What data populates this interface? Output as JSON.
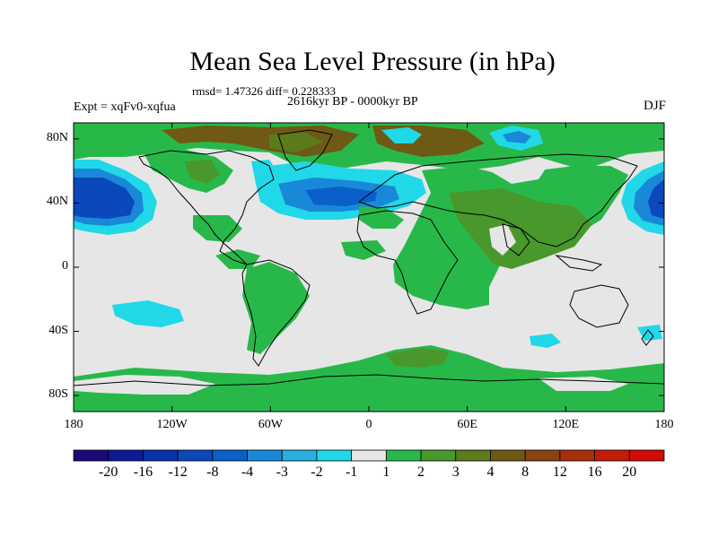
{
  "title": "Mean Sea Level Pressure (in hPa)",
  "stats": "rmsd= 1.47326 diff= 0.228333",
  "period": "2616kyr BP - 0000kyr BP",
  "experiment": "Expt = xqFv0-xqfua",
  "season": "DJF",
  "lat_ticks": [
    {
      "label": "80N",
      "value": 80
    },
    {
      "label": "40N",
      "value": 40
    },
    {
      "label": "0",
      "value": 0
    },
    {
      "label": "40S",
      "value": -40
    },
    {
      "label": "80S",
      "value": -80
    }
  ],
  "lon_ticks": [
    {
      "label": "180",
      "value": -180
    },
    {
      "label": "120W",
      "value": -120
    },
    {
      "label": "60W",
      "value": -60
    },
    {
      "label": "0",
      "value": 0
    },
    {
      "label": "60E",
      "value": 60
    },
    {
      "label": "120E",
      "value": 120
    },
    {
      "label": "180",
      "value": 180
    }
  ],
  "colorbar": {
    "colors": [
      "#1a0a78",
      "#0d1a96",
      "#0a30aa",
      "#0a48bc",
      "#0a60c8",
      "#1a88d8",
      "#28b0e0",
      "#20d8e8",
      "#e6e6e6",
      "#28b84a",
      "#48982c",
      "#5c7c1c",
      "#6e5a14",
      "#8a4210",
      "#a8300a",
      "#c21c06",
      "#d40a04"
    ],
    "labels": [
      "-20",
      "-16",
      "-12",
      "-8",
      "-4",
      "-3",
      "-2",
      "-1",
      "1",
      "2",
      "3",
      "4",
      "8",
      "12",
      "16",
      "20"
    ]
  },
  "chart_data": {
    "type": "heatmap",
    "title": "Mean Sea Level Pressure (in hPa)",
    "variable": "Mean sea level pressure difference",
    "units": "hPa",
    "experiment": "Expt = xqFv0-xqfua",
    "period": "2616kyr BP - 0000kyr BP",
    "season": "DJF",
    "rmsd": 1.47326,
    "diff": 0.228333,
    "xlim": [
      -180,
      180
    ],
    "ylim": [
      -90,
      90
    ],
    "levels": [
      -20,
      -16,
      -12,
      -8,
      -4,
      -3,
      -2,
      -1,
      1,
      2,
      3,
      4,
      8,
      12,
      16,
      20
    ],
    "features": [
      {
        "name": "North Pacific low anomaly",
        "lon": -155,
        "lat": 40,
        "min_level": -8
      },
      {
        "name": "North Atlantic low anomaly",
        "lon": -20,
        "lat": 38,
        "min_level": -4
      },
      {
        "name": "West Pacific low anomaly",
        "lon": 175,
        "lat": 40,
        "min_level": -8
      },
      {
        "name": "Arctic high anomaly",
        "lon": 0,
        "lat": 80,
        "max_level": 4
      },
      {
        "name": "Africa-Asia positive anomaly",
        "lon": 55,
        "lat": 10,
        "max_level": 3
      },
      {
        "name": "Southern Ocean positive band",
        "lon": 30,
        "lat": -78,
        "max_level": 3
      }
    ]
  }
}
